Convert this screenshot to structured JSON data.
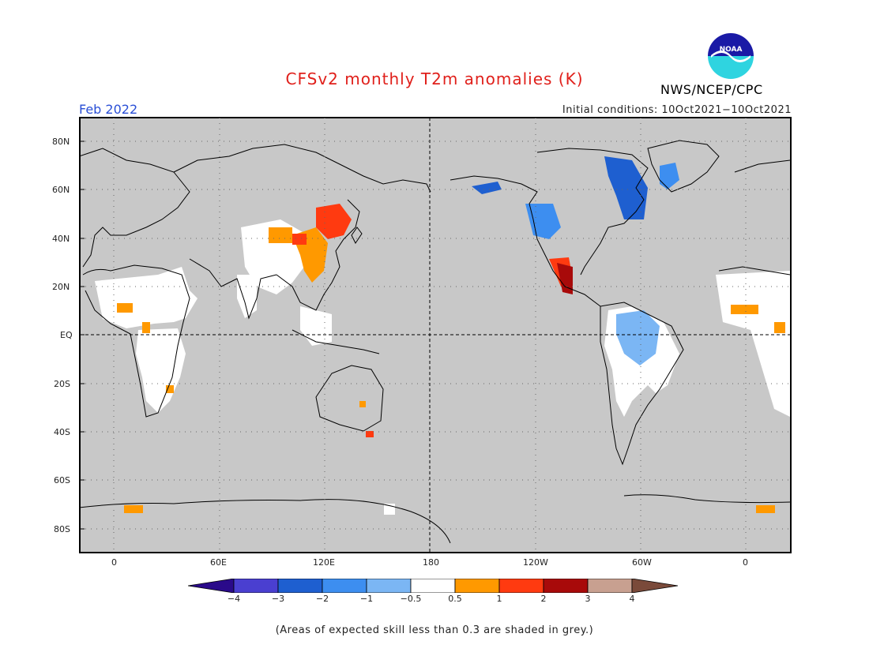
{
  "header": {
    "title": "CFSv2 monthly T2m anomalies (K)",
    "month": "Feb 2022",
    "initial_conditions": "Initial conditions: 10Oct2021−10Oct2021",
    "agency": "NWS/NCEP/CPC",
    "logo_icon": "noaa-logo-icon",
    "logo_text": "NOAA"
  },
  "axes": {
    "lat_labels": [
      "80N",
      "60N",
      "40N",
      "20N",
      "EQ",
      "20S",
      "40S",
      "60S",
      "80S"
    ],
    "lat_values": [
      80,
      60,
      40,
      20,
      0,
      -20,
      -40,
      -60,
      -80
    ],
    "lon_labels": [
      "0",
      "60E",
      "120E",
      "180",
      "120W",
      "60W",
      "0"
    ],
    "lon_values": [
      0,
      60,
      120,
      180,
      240,
      300,
      360
    ],
    "lat_range": [
      -90,
      90
    ],
    "lon_range": [
      -20,
      380
    ]
  },
  "colorbar": {
    "labels": [
      "−4",
      "−3",
      "−2",
      "−1",
      "−0.5",
      "0.5",
      "1",
      "2",
      "3",
      "4"
    ],
    "colors": [
      "#2a0a8a",
      "#4a3fd0",
      "#1e5fd0",
      "#3d8ef0",
      "#7bb6f4",
      "#ffffff",
      "#ff9900",
      "#ff3a10",
      "#a80a0a",
      "#c8a090",
      "#7a4a3a"
    ]
  },
  "footnote": "(Areas of expected skill less than 0.3 are shaded in grey.)",
  "map": {
    "background_grey": "#c8c8c8",
    "regions": [
      {
        "name": "n-africa-white",
        "color": "#ffffff"
      },
      {
        "name": "s-africa-white",
        "color": "#ffffff"
      },
      {
        "name": "sahel-orange",
        "color": "#ff9900"
      },
      {
        "name": "china-orange",
        "color": "#ff9900"
      },
      {
        "name": "ne-china-red",
        "color": "#ff3a10"
      },
      {
        "name": "mexico-darkred",
        "color": "#a80a0a"
      },
      {
        "name": "canada-blue",
        "color": "#1e5fd0"
      },
      {
        "name": "nw-america-lightblue",
        "color": "#3d8ef0"
      },
      {
        "name": "amazon-lightblue",
        "color": "#7bb6f4"
      },
      {
        "name": "s-america-white",
        "color": "#ffffff"
      },
      {
        "name": "alaska-blue",
        "color": "#1e5fd0"
      },
      {
        "name": "antarctic-orange",
        "color": "#ff9900"
      },
      {
        "name": "australia-orange",
        "color": "#ff9900"
      }
    ]
  }
}
